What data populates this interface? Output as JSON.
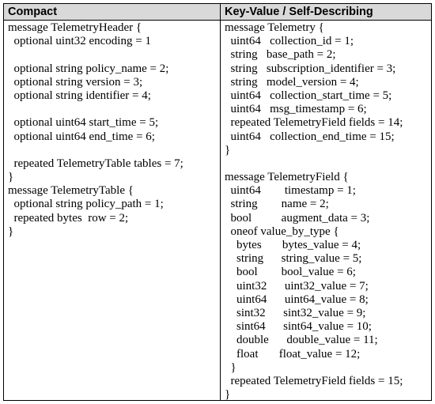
{
  "headers": {
    "left": "Compact",
    "right": "Key-Value / Self-Describing"
  },
  "left_lines": [
    "message TelemetryHeader {",
    "  optional uint32 encoding = 1",
    "",
    "  optional string policy_name = 2;",
    "  optional string version = 3;",
    "  optional string identifier = 4;",
    "",
    "  optional uint64 start_time = 5;",
    "  optional uint64 end_time = 6;",
    "",
    "  repeated TelemetryTable tables = 7;",
    "}",
    "message TelemetryTable {",
    "  optional string policy_path = 1;",
    "  repeated bytes  row = 2;",
    "}"
  ],
  "right_lines": [
    "message Telemetry {",
    "  uint64   collection_id = 1;",
    "  string   base_path = 2;",
    "  string   subscription_identifier = 3;",
    "  string   model_version = 4;",
    "  uint64   collection_start_time = 5;",
    "  uint64   msg_timestamp = 6;",
    "  repeated TelemetryField fields = 14;",
    "  uint64   collection_end_time = 15;",
    "}",
    "",
    "message TelemetryField {",
    "  uint64        timestamp = 1;",
    "  string        name = 2;",
    "  bool          augment_data = 3;",
    "  oneof value_by_type {",
    "    bytes       bytes_value = 4;",
    "    string      string_value = 5;",
    "    bool        bool_value = 6;",
    "    uint32      uint32_value = 7;",
    "    uint64      uint64_value = 8;",
    "    sint32      sint32_value = 9;",
    "    sint64      sint64_value = 10;",
    "    double      double_value = 11;",
    "    float       float_value = 12;",
    "  }",
    "  repeated TelemetryField fields = 15;",
    "}"
  ]
}
